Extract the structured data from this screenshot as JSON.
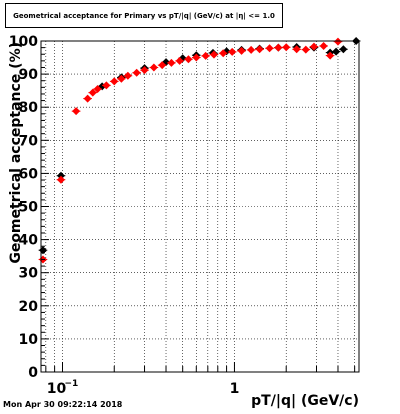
{
  "chart_data": {
    "type": "scatter",
    "title": "Geometrical acceptance for Primary vs pT/|q| (GeV/c) at |η| <= 1.0",
    "xlabel": "pT/|q| (GeV/c)",
    "ylabel": "Geometrical acceptance (%)",
    "xscale": "log",
    "xlim": [
      0.075,
      5.3
    ],
    "ylim": [
      0,
      100
    ],
    "grid": true,
    "x_tick_labels": [
      {
        "value": 0.1,
        "label": "10",
        "exponent": "−1"
      },
      {
        "value": 1,
        "label": "1",
        "exponent": ""
      }
    ],
    "y_tick_labels": [
      "0",
      "10",
      "20",
      "30",
      "40",
      "50",
      "60",
      "70",
      "80",
      "90",
      "100"
    ],
    "series": [
      {
        "color": "#000000",
        "marker": "diamond",
        "points": [
          {
            "x": 0.077,
            "y": 36.8
          },
          {
            "x": 0.098,
            "y": 59.3
          },
          {
            "x": 0.17,
            "y": 86.3
          },
          {
            "x": 0.22,
            "y": 89.0
          },
          {
            "x": 0.3,
            "y": 91.8
          },
          {
            "x": 0.4,
            "y": 93.6
          },
          {
            "x": 0.5,
            "y": 94.8
          },
          {
            "x": 0.6,
            "y": 95.7
          },
          {
            "x": 0.75,
            "y": 96.4
          },
          {
            "x": 0.9,
            "y": 96.9
          },
          {
            "x": 1.1,
            "y": 97.3
          },
          {
            "x": 1.4,
            "y": 97.7
          },
          {
            "x": 1.8,
            "y": 98.0
          },
          {
            "x": 2.3,
            "y": 98.2
          },
          {
            "x": 2.9,
            "y": 98.0
          },
          {
            "x": 3.6,
            "y": 96.5
          },
          {
            "x": 3.9,
            "y": 96.8
          },
          {
            "x": 4.3,
            "y": 97.5
          },
          {
            "x": 5.1,
            "y": 100.0
          }
        ]
      },
      {
        "color": "#ff0000",
        "marker": "diamond",
        "points": [
          {
            "x": 0.077,
            "y": 34.0
          },
          {
            "x": 0.098,
            "y": 58.1
          },
          {
            "x": 0.12,
            "y": 78.8
          },
          {
            "x": 0.14,
            "y": 82.6
          },
          {
            "x": 0.15,
            "y": 84.4
          },
          {
            "x": 0.16,
            "y": 85.5
          },
          {
            "x": 0.18,
            "y": 86.6
          },
          {
            "x": 0.2,
            "y": 87.8
          },
          {
            "x": 0.22,
            "y": 88.6
          },
          {
            "x": 0.24,
            "y": 89.5
          },
          {
            "x": 0.27,
            "y": 90.4
          },
          {
            "x": 0.3,
            "y": 91.2
          },
          {
            "x": 0.34,
            "y": 92.0
          },
          {
            "x": 0.38,
            "y": 92.7
          },
          {
            "x": 0.43,
            "y": 93.4
          },
          {
            "x": 0.48,
            "y": 94.0
          },
          {
            "x": 0.54,
            "y": 94.5
          },
          {
            "x": 0.6,
            "y": 95.0
          },
          {
            "x": 0.68,
            "y": 95.5
          },
          {
            "x": 0.76,
            "y": 95.9
          },
          {
            "x": 0.86,
            "y": 96.3
          },
          {
            "x": 0.97,
            "y": 96.7
          },
          {
            "x": 1.1,
            "y": 97.0
          },
          {
            "x": 1.25,
            "y": 97.3
          },
          {
            "x": 1.4,
            "y": 97.5
          },
          {
            "x": 1.6,
            "y": 97.8
          },
          {
            "x": 1.8,
            "y": 98.0
          },
          {
            "x": 2.0,
            "y": 98.1
          },
          {
            "x": 2.3,
            "y": 97.5
          },
          {
            "x": 2.6,
            "y": 97.4
          },
          {
            "x": 2.9,
            "y": 98.3
          },
          {
            "x": 3.3,
            "y": 98.5
          },
          {
            "x": 3.6,
            "y": 95.6
          },
          {
            "x": 4.0,
            "y": 99.8
          }
        ]
      }
    ]
  },
  "timestamp": "Mon Apr 30 09:22:14 2018"
}
